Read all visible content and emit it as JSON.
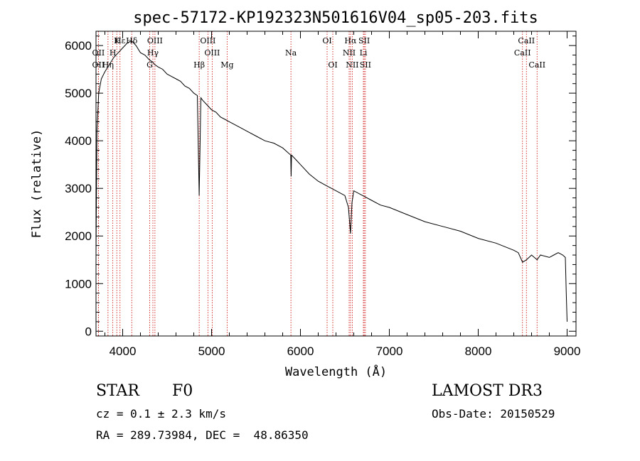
{
  "chart_data": {
    "type": "line",
    "title": "spec-57172-KP192323N501616V04_sp05-203.fits",
    "xlabel": "Wavelength (Å)",
    "ylabel": "Flux (relative)",
    "xlim": [
      3700,
      9100
    ],
    "ylim": [
      -100,
      6300
    ],
    "xticks": [
      4000,
      5000,
      6000,
      7000,
      8000,
      9000
    ],
    "yticks": [
      0,
      1000,
      2000,
      3000,
      4000,
      5000,
      6000
    ],
    "grid": false,
    "series": [
      {
        "name": "flux",
        "color": "#000000",
        "x": [
          3700,
          3710,
          3730,
          3760,
          3800,
          3850,
          3900,
          3950,
          4000,
          4050,
          4100,
          4150,
          4200,
          4250,
          4300,
          4340,
          4360,
          4400,
          4450,
          4500,
          4550,
          4600,
          4650,
          4700,
          4750,
          4800,
          4840,
          4861,
          4880,
          4900,
          4950,
          5000,
          5050,
          5100,
          5150,
          5200,
          5300,
          5400,
          5500,
          5600,
          5700,
          5800,
          5890,
          5895,
          5900,
          5950,
          6000,
          6100,
          6200,
          6300,
          6400,
          6500,
          6540,
          6563,
          6580,
          6600,
          6700,
          6800,
          6900,
          7000,
          7200,
          7400,
          7600,
          7800,
          8000,
          8200,
          8400,
          8450,
          8498,
          8542,
          8600,
          8662,
          8700,
          8800,
          8850,
          8900,
          8950,
          8980,
          8990,
          9000
        ],
        "y": [
          1600,
          4200,
          5000,
          5300,
          5450,
          5600,
          5750,
          5850,
          5950,
          6050,
          6100,
          6000,
          5850,
          5800,
          5700,
          5650,
          5600,
          5550,
          5500,
          5400,
          5350,
          5300,
          5250,
          5150,
          5100,
          5000,
          4950,
          2850,
          4900,
          4850,
          4750,
          4650,
          4600,
          4500,
          4450,
          4400,
          4300,
          4200,
          4100,
          4000,
          3950,
          3850,
          3700,
          3250,
          3700,
          3600,
          3500,
          3300,
          3150,
          3050,
          2950,
          2850,
          2600,
          2050,
          2700,
          2950,
          2850,
          2750,
          2650,
          2600,
          2450,
          2300,
          2200,
          2100,
          1950,
          1850,
          1700,
          1650,
          1450,
          1500,
          1600,
          1500,
          1600,
          1550,
          1600,
          1650,
          1600,
          1550,
          800,
          200
        ]
      }
    ],
    "emission_lines": [
      {
        "label": "Hδ",
        "wavelength": 4102,
        "row": 1
      },
      {
        "label": "K",
        "wavelength": 3934,
        "row": 1
      },
      {
        "label": "Hε",
        "wavelength": 3970,
        "row": 1
      },
      {
        "label": "OIII",
        "wavelength": 4363,
        "row": 1
      },
      {
        "label": "OIII",
        "wavelength": 4959,
        "row": 1
      },
      {
        "label": "OI",
        "wavelength": 6300,
        "row": 1
      },
      {
        "label": "Hα",
        "wavelength": 6563,
        "row": 1
      },
      {
        "label": "SII",
        "wavelength": 6717,
        "row": 1
      },
      {
        "label": "CaII",
        "wavelength": 8542,
        "row": 1
      },
      {
        "label": "OII",
        "wavelength": 3727,
        "row": 2
      },
      {
        "label": "H",
        "wavelength": 3889,
        "row": 2
      },
      {
        "label": "Hγ",
        "wavelength": 4340,
        "row": 2
      },
      {
        "label": "OIII",
        "wavelength": 5007,
        "row": 2
      },
      {
        "label": "Na",
        "wavelength": 5893,
        "row": 2
      },
      {
        "label": "NII",
        "wavelength": 6548,
        "row": 2
      },
      {
        "label": "Li",
        "wavelength": 6708,
        "row": 2
      },
      {
        "label": "CaII",
        "wavelength": 8498,
        "row": 2
      },
      {
        "label": "OII",
        "wavelength": 3727,
        "row": 3
      },
      {
        "label": "Hη",
        "wavelength": 3835,
        "row": 3
      },
      {
        "label": "G",
        "wavelength": 4304,
        "row": 3
      },
      {
        "label": "Hβ",
        "wavelength": 4861,
        "row": 3
      },
      {
        "label": "Mg",
        "wavelength": 5175,
        "row": 3
      },
      {
        "label": "OI",
        "wavelength": 6364,
        "row": 3
      },
      {
        "label": "NII",
        "wavelength": 6583,
        "row": 3
      },
      {
        "label": "SII",
        "wavelength": 6731,
        "row": 3
      },
      {
        "label": "CaII",
        "wavelength": 8662,
        "row": 3
      }
    ],
    "line_marker_color": "#cc0000"
  },
  "info": {
    "object_class": "STAR",
    "subclass": "F0",
    "survey": "LAMOST DR3",
    "redshift": "cz = 0.1 ± 2.3 km/s",
    "obs_date": "Obs-Date: 20150529",
    "coordinates": "RA = 289.73984, DEC =  48.86350"
  }
}
